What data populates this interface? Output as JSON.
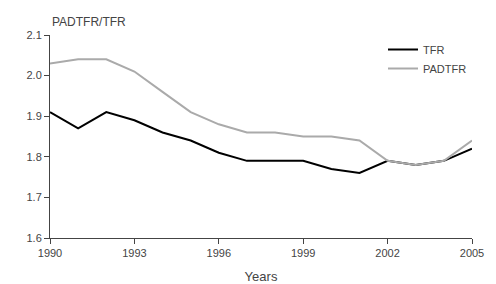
{
  "chart_data": {
    "type": "line",
    "xlabel": "Years",
    "ylabel": "PADTFR/TFR",
    "x": [
      1990,
      1991,
      1992,
      1993,
      1994,
      1995,
      1996,
      1997,
      1998,
      1999,
      2000,
      2001,
      2002,
      2003,
      2004,
      2005
    ],
    "series": [
      {
        "name": "TFR",
        "color": "#000000",
        "values": [
          1.91,
          1.87,
          1.91,
          1.89,
          1.86,
          1.84,
          1.81,
          1.79,
          1.79,
          1.79,
          1.77,
          1.76,
          1.79,
          1.78,
          1.79,
          1.82
        ]
      },
      {
        "name": "PADTFR",
        "color": "#aaaaaa",
        "values": [
          2.03,
          2.04,
          2.04,
          2.01,
          1.96,
          1.91,
          1.88,
          1.86,
          1.86,
          1.85,
          1.85,
          1.84,
          1.79,
          1.78,
          1.79,
          1.84
        ]
      }
    ],
    "xlim": [
      1990,
      2005
    ],
    "xticks": [
      1990,
      1993,
      1996,
      1999,
      2002,
      2005
    ],
    "ylim": [
      1.6,
      2.1
    ],
    "yticks": [
      1.6,
      1.7,
      1.8,
      1.9,
      {
        "value": 2.0,
        "label": "2.0"
      },
      2.1
    ],
    "grid": false,
    "legend": "upper right"
  }
}
